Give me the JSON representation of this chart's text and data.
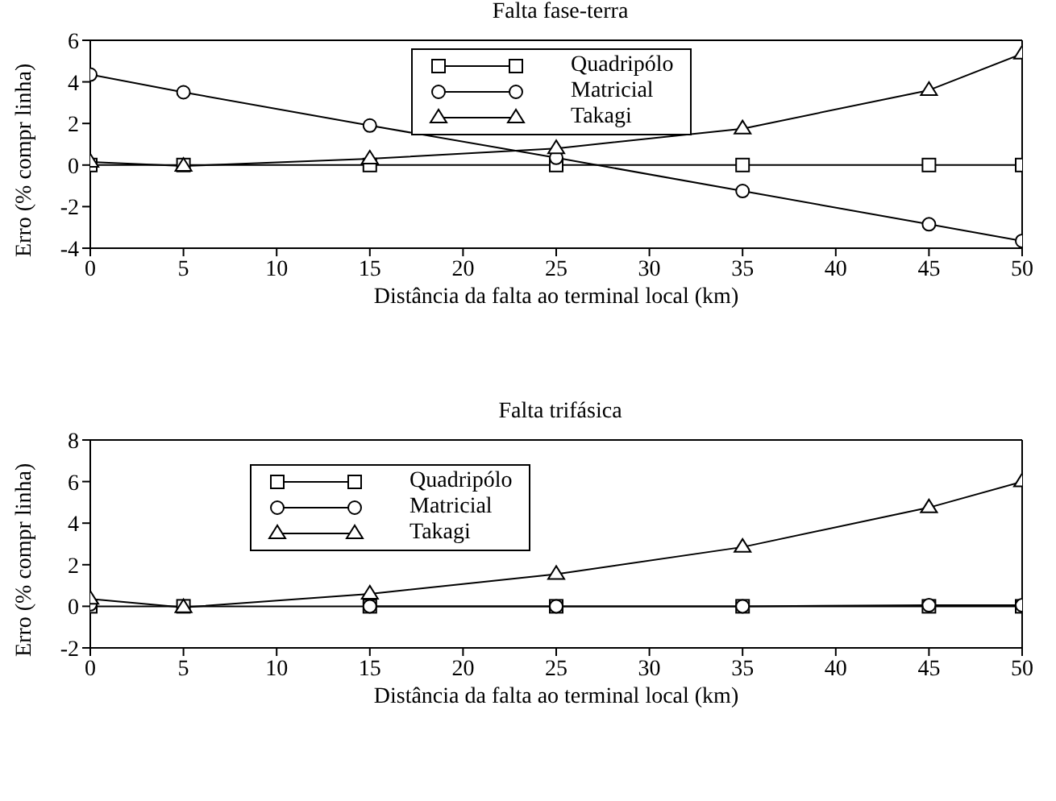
{
  "chart_data": [
    {
      "type": "line",
      "title": "Falta fase-terra",
      "xlabel": "Distância da falta ao terminal local (km)",
      "ylabel": "Erro (% compr linha)",
      "x": [
        0,
        5,
        15,
        25,
        35,
        45,
        50
      ],
      "xlim": [
        0,
        50
      ],
      "xticks": [
        0,
        5,
        10,
        15,
        20,
        25,
        30,
        35,
        40,
        45,
        50
      ],
      "ylim": [
        -4,
        6
      ],
      "yticks": [
        -4,
        -2,
        0,
        2,
        4,
        6
      ],
      "grid": false,
      "legend": "top",
      "series": [
        {
          "name": "Quadripólo",
          "color": "#000000",
          "marker": "square",
          "values": [
            0,
            0,
            0,
            0,
            0,
            0,
            0
          ]
        },
        {
          "name": "Matricial",
          "color": "#000000",
          "marker": "circle",
          "values": [
            4.35,
            3.5,
            1.9,
            0.35,
            -1.25,
            -2.85,
            -3.65
          ]
        },
        {
          "name": "Takagi",
          "color": "#000000",
          "marker": "triangle",
          "values": [
            0.15,
            -0.05,
            0.3,
            0.8,
            1.75,
            3.6,
            5.35
          ]
        }
      ]
    },
    {
      "type": "line",
      "title": "Falta trifásica",
      "xlabel": "Distância da falta ao terminal local (km)",
      "ylabel": "Erro (% compr linha)",
      "x": [
        0,
        5,
        15,
        25,
        35,
        45,
        50
      ],
      "xlim": [
        0,
        50
      ],
      "xticks": [
        0,
        5,
        10,
        15,
        20,
        25,
        30,
        35,
        40,
        45,
        50
      ],
      "ylim": [
        -2,
        8
      ],
      "yticks": [
        -2,
        0,
        2,
        4,
        6,
        8
      ],
      "grid": false,
      "legend": "top left",
      "series": [
        {
          "name": "Quadripólo",
          "color": "#000000",
          "marker": "square",
          "values": [
            0,
            0,
            0,
            0,
            0,
            0,
            0
          ]
        },
        {
          "name": "Matricial",
          "color": "#000000",
          "marker": "circle",
          "values": [
            0.1,
            null,
            0,
            0,
            0,
            0.05,
            0.05
          ]
        },
        {
          "name": "Takagi",
          "color": "#000000",
          "marker": "triangle",
          "values": [
            0.35,
            -0.05,
            0.6,
            1.55,
            2.85,
            4.75,
            6.0
          ]
        }
      ]
    }
  ]
}
